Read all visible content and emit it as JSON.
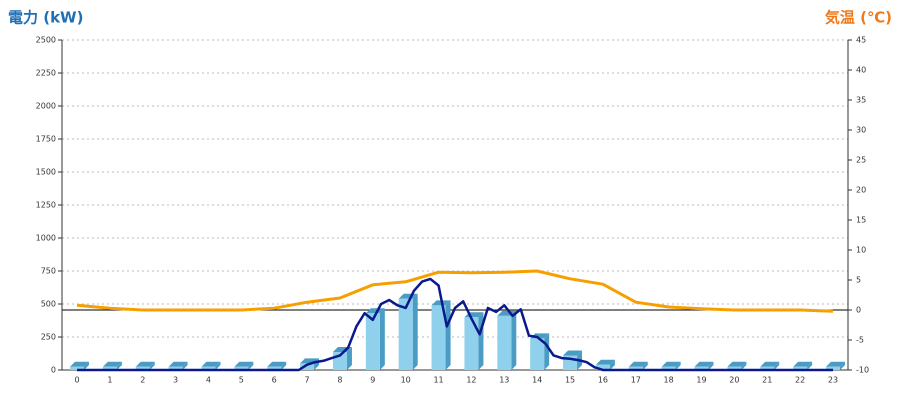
{
  "chart_data": {
    "type": "bar",
    "y_label": "電力 (kW)",
    "y_label_color": "#1f6fb5",
    "y2_label": "気温 (℃)",
    "y2_label_color": "#f07a1a",
    "categories": [
      "0",
      "1",
      "2",
      "3",
      "4",
      "5",
      "6",
      "7",
      "8",
      "9",
      "10",
      "11",
      "12",
      "13",
      "14",
      "15",
      "16",
      "17",
      "18",
      "19",
      "20",
      "21",
      "22",
      "23"
    ],
    "series": [
      {
        "type": "bar",
        "color": "#8fd0ec",
        "side_color": "#4a9cc4",
        "values": [
          25,
          25,
          25,
          25,
          25,
          25,
          25,
          50,
          136,
          430,
          540,
          490,
          400,
          410,
          240,
          110,
          40,
          25,
          25,
          25,
          25,
          25,
          25,
          25
        ]
      },
      {
        "type": "line",
        "color": "#0a1a8c",
        "x": [
          0,
          6.5,
          6.75,
          7,
          7.25,
          7.5,
          7.75,
          8,
          8.25,
          8.5,
          8.75,
          9,
          9.25,
          9.5,
          9.75,
          10,
          10.25,
          10.5,
          10.75,
          11,
          11.25,
          11.5,
          11.75,
          12,
          12.25,
          12.5,
          12.75,
          13,
          13.25,
          13.5,
          13.75,
          14,
          14.25,
          14.5,
          14.75,
          15,
          15.25,
          15.5,
          15.75,
          16,
          23
        ],
        "values": [
          0,
          0,
          0,
          40,
          60,
          70,
          90,
          110,
          170,
          330,
          430,
          380,
          500,
          530,
          490,
          470,
          600,
          670,
          690,
          640,
          330,
          470,
          520,
          390,
          270,
          470,
          440,
          490,
          410,
          460,
          260,
          250,
          200,
          110,
          90,
          85,
          75,
          60,
          20,
          0,
          0
        ]
      },
      {
        "type": "line",
        "axis": "y2",
        "color": "#f5a000",
        "values": [
          0.8,
          0.3,
          0,
          0,
          0,
          0,
          0.3,
          1.3,
          2,
          4.2,
          4.7,
          6.3,
          6.2,
          6.3,
          6.5,
          5.2,
          4.3,
          1.3,
          0.5,
          0.2,
          0,
          0,
          0,
          -0.2
        ]
      }
    ],
    "ylim": [
      0,
      2500
    ],
    "yticks": [
      0,
      250,
      500,
      750,
      1000,
      1250,
      1500,
      1750,
      2000,
      2250,
      2500
    ],
    "y2lim": [
      -10,
      45
    ],
    "y2ticks": [
      -10,
      -5,
      0,
      5,
      10,
      15,
      20,
      25,
      30,
      35,
      40,
      45
    ],
    "grid": true
  }
}
